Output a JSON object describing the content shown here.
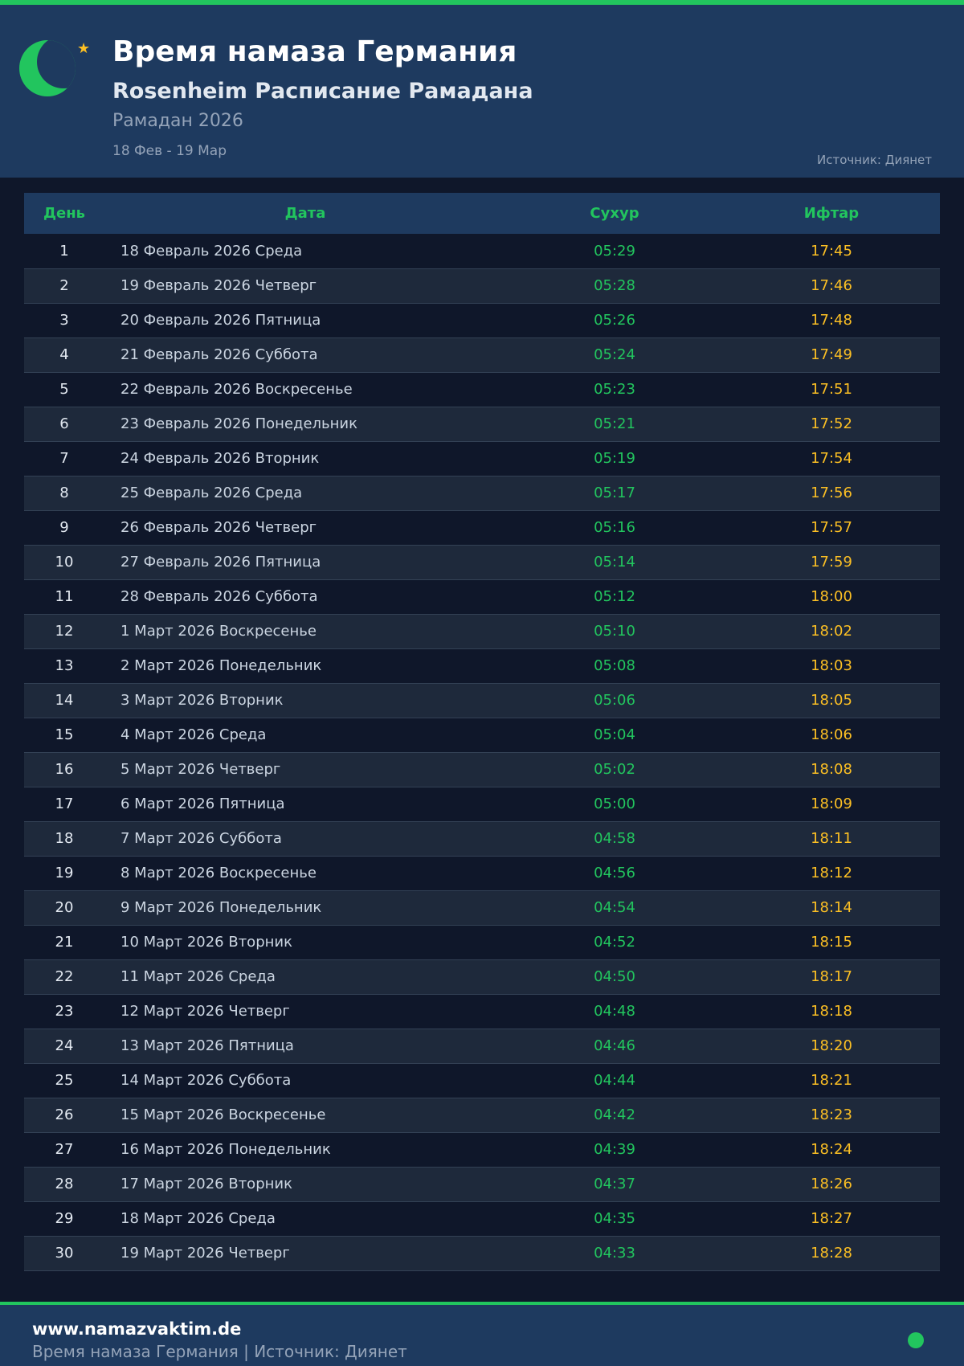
{
  "header": {
    "title": "Время намаза Германия",
    "subtitle": "Rosenheim Расписание Рамадана",
    "year": "Рамадан 2026",
    "range": "18 Фев - 19 Мар",
    "source": "Источник: Диянет"
  },
  "colors": {
    "accent": "#22c55e",
    "iftar": "#fbbf24",
    "header_bg": "#1e3a5f",
    "bg": "#0f172a"
  },
  "table": {
    "headers": [
      "День",
      "Дата",
      "Сухур",
      "Ифтар"
    ],
    "rows": [
      [
        "1",
        "18 Февраль 2026 Среда",
        "05:29",
        "17:45"
      ],
      [
        "2",
        "19 Февраль 2026 Четверг",
        "05:28",
        "17:46"
      ],
      [
        "3",
        "20 Февраль 2026 Пятница",
        "05:26",
        "17:48"
      ],
      [
        "4",
        "21 Февраль 2026 Суббота",
        "05:24",
        "17:49"
      ],
      [
        "5",
        "22 Февраль 2026 Воскресенье",
        "05:23",
        "17:51"
      ],
      [
        "6",
        "23 Февраль 2026 Понедельник",
        "05:21",
        "17:52"
      ],
      [
        "7",
        "24 Февраль 2026 Вторник",
        "05:19",
        "17:54"
      ],
      [
        "8",
        "25 Февраль 2026 Среда",
        "05:17",
        "17:56"
      ],
      [
        "9",
        "26 Февраль 2026 Четверг",
        "05:16",
        "17:57"
      ],
      [
        "10",
        "27 Февраль 2026 Пятница",
        "05:14",
        "17:59"
      ],
      [
        "11",
        "28 Февраль 2026 Суббота",
        "05:12",
        "18:00"
      ],
      [
        "12",
        "1 Март 2026 Воскресенье",
        "05:10",
        "18:02"
      ],
      [
        "13",
        "2 Март 2026 Понедельник",
        "05:08",
        "18:03"
      ],
      [
        "14",
        "3 Март 2026 Вторник",
        "05:06",
        "18:05"
      ],
      [
        "15",
        "4 Март 2026 Среда",
        "05:04",
        "18:06"
      ],
      [
        "16",
        "5 Март 2026 Четверг",
        "05:02",
        "18:08"
      ],
      [
        "17",
        "6 Март 2026 Пятница",
        "05:00",
        "18:09"
      ],
      [
        "18",
        "7 Март 2026 Суббота",
        "04:58",
        "18:11"
      ],
      [
        "19",
        "8 Март 2026 Воскресенье",
        "04:56",
        "18:12"
      ],
      [
        "20",
        "9 Март 2026 Понедельник",
        "04:54",
        "18:14"
      ],
      [
        "21",
        "10 Март 2026 Вторник",
        "04:52",
        "18:15"
      ],
      [
        "22",
        "11 Март 2026 Среда",
        "04:50",
        "18:17"
      ],
      [
        "23",
        "12 Март 2026 Четверг",
        "04:48",
        "18:18"
      ],
      [
        "24",
        "13 Март 2026 Пятница",
        "04:46",
        "18:20"
      ],
      [
        "25",
        "14 Март 2026 Суббота",
        "04:44",
        "18:21"
      ],
      [
        "26",
        "15 Март 2026 Воскресенье",
        "04:42",
        "18:23"
      ],
      [
        "27",
        "16 Март 2026 Понедельник",
        "04:39",
        "18:24"
      ],
      [
        "28",
        "17 Март 2026 Вторник",
        "04:37",
        "18:26"
      ],
      [
        "29",
        "18 Март 2026 Среда",
        "04:35",
        "18:27"
      ],
      [
        "30",
        "19 Март 2026 Четверг",
        "04:33",
        "18:28"
      ]
    ]
  },
  "footer": {
    "site": "www.namazvaktim.de",
    "text": "Время намаза Германия | Источник: Диянет"
  }
}
